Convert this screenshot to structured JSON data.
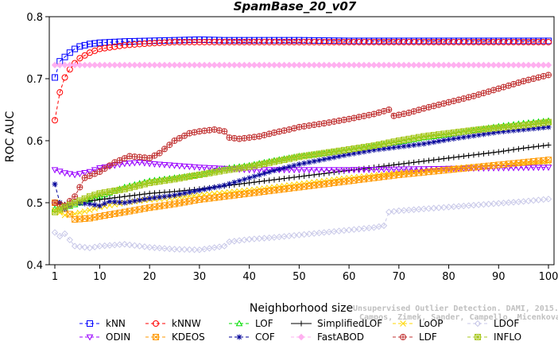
{
  "chart_data": {
    "type": "line",
    "title": "SpamBase_20_v07",
    "xlabel": "Neighborhood size",
    "ylabel": "ROC AUC",
    "xlim": [
      1,
      100
    ],
    "ylim": [
      0.4,
      0.8
    ],
    "xticks": [
      1,
      10,
      20,
      30,
      40,
      50,
      60,
      70,
      80,
      90,
      100
    ],
    "yticks": [
      0.4,
      0.5,
      0.6,
      0.7,
      0.8
    ],
    "grid": false,
    "legend_position": "bottom",
    "credit_lines": [
      "Unsupervised Outlier Detection. DAMI, 2015.",
      "Campos, Zimek, Sander, Campello, Micenkova, Schubert, Assent, Houle"
    ],
    "series": [
      {
        "name": "kNN",
        "color": "#0000ff",
        "marker": "square",
        "dash": "4,3",
        "points": [
          [
            1,
            0.702
          ],
          [
            2,
            0.728
          ],
          [
            3,
            0.735
          ],
          [
            4,
            0.742
          ],
          [
            5,
            0.748
          ],
          [
            6,
            0.752
          ],
          [
            8,
            0.756
          ],
          [
            10,
            0.758
          ],
          [
            15,
            0.76
          ],
          [
            20,
            0.761
          ],
          [
            25,
            0.762
          ],
          [
            30,
            0.763
          ],
          [
            35,
            0.762
          ],
          [
            40,
            0.762
          ],
          [
            50,
            0.762
          ],
          [
            60,
            0.761
          ],
          [
            70,
            0.761
          ],
          [
            80,
            0.761
          ],
          [
            90,
            0.761
          ],
          [
            100,
            0.761
          ]
        ]
      },
      {
        "name": "kNNW",
        "color": "#ff0000",
        "marker": "circle",
        "dash": "4,3",
        "points": [
          [
            1,
            0.633
          ],
          [
            2,
            0.678
          ],
          [
            3,
            0.702
          ],
          [
            4,
            0.715
          ],
          [
            5,
            0.725
          ],
          [
            6,
            0.733
          ],
          [
            8,
            0.742
          ],
          [
            10,
            0.748
          ],
          [
            15,
            0.754
          ],
          [
            20,
            0.757
          ],
          [
            25,
            0.759
          ],
          [
            30,
            0.759
          ],
          [
            35,
            0.759
          ],
          [
            40,
            0.759
          ],
          [
            50,
            0.759
          ],
          [
            60,
            0.759
          ],
          [
            70,
            0.759
          ],
          [
            80,
            0.759
          ],
          [
            90,
            0.759
          ],
          [
            100,
            0.759
          ]
        ]
      },
      {
        "name": "LOF",
        "color": "#00dd00",
        "marker": "triangle-up",
        "dash": "4,3",
        "points": [
          [
            1,
            0.49
          ],
          [
            3,
            0.492
          ],
          [
            5,
            0.497
          ],
          [
            8,
            0.505
          ],
          [
            10,
            0.51
          ],
          [
            15,
            0.525
          ],
          [
            20,
            0.535
          ],
          [
            25,
            0.54
          ],
          [
            30,
            0.545
          ],
          [
            35,
            0.555
          ],
          [
            40,
            0.56
          ],
          [
            45,
            0.568
          ],
          [
            50,
            0.575
          ],
          [
            55,
            0.58
          ],
          [
            60,
            0.585
          ],
          [
            65,
            0.592
          ],
          [
            70,
            0.598
          ],
          [
            75,
            0.605
          ],
          [
            80,
            0.61
          ],
          [
            85,
            0.617
          ],
          [
            90,
            0.623
          ],
          [
            95,
            0.628
          ],
          [
            100,
            0.632
          ]
        ]
      },
      {
        "name": "SimplifiedLOF",
        "color": "#000000",
        "marker": "plus",
        "dash": "",
        "points": [
          [
            1,
            0.5
          ],
          [
            3,
            0.497
          ],
          [
            5,
            0.5
          ],
          [
            8,
            0.503
          ],
          [
            10,
            0.505
          ],
          [
            15,
            0.51
          ],
          [
            20,
            0.515
          ],
          [
            25,
            0.518
          ],
          [
            30,
            0.522
          ],
          [
            35,
            0.527
          ],
          [
            40,
            0.532
          ],
          [
            45,
            0.537
          ],
          [
            50,
            0.542
          ],
          [
            55,
            0.547
          ],
          [
            60,
            0.552
          ],
          [
            65,
            0.557
          ],
          [
            70,
            0.562
          ],
          [
            75,
            0.567
          ],
          [
            80,
            0.572
          ],
          [
            85,
            0.577
          ],
          [
            90,
            0.582
          ],
          [
            95,
            0.588
          ],
          [
            100,
            0.593
          ]
        ]
      },
      {
        "name": "LoOP",
        "color": "#ffd700",
        "marker": "x",
        "dash": "4,3",
        "points": [
          [
            1,
            0.488
          ],
          [
            3,
            0.48
          ],
          [
            5,
            0.482
          ],
          [
            8,
            0.488
          ],
          [
            10,
            0.493
          ],
          [
            15,
            0.5
          ],
          [
            20,
            0.505
          ],
          [
            25,
            0.508
          ],
          [
            30,
            0.512
          ],
          [
            35,
            0.516
          ],
          [
            40,
            0.52
          ],
          [
            45,
            0.525
          ],
          [
            50,
            0.53
          ],
          [
            55,
            0.535
          ],
          [
            60,
            0.54
          ],
          [
            65,
            0.544
          ],
          [
            70,
            0.548
          ],
          [
            75,
            0.552
          ],
          [
            80,
            0.555
          ],
          [
            85,
            0.558
          ],
          [
            90,
            0.561
          ],
          [
            95,
            0.563
          ],
          [
            100,
            0.565
          ]
        ]
      },
      {
        "name": "LDOF",
        "color": "#c8c8e8",
        "marker": "diamond",
        "dash": "4,3",
        "points": [
          [
            1,
            0.452
          ],
          [
            2,
            0.446
          ],
          [
            3,
            0.45
          ],
          [
            5,
            0.43
          ],
          [
            8,
            0.427
          ],
          [
            10,
            0.43
          ],
          [
            15,
            0.433
          ],
          [
            20,
            0.428
          ],
          [
            25,
            0.425
          ],
          [
            30,
            0.424
          ],
          [
            35,
            0.43
          ],
          [
            36,
            0.437
          ],
          [
            40,
            0.441
          ],
          [
            45,
            0.444
          ],
          [
            50,
            0.448
          ],
          [
            55,
            0.452
          ],
          [
            60,
            0.456
          ],
          [
            65,
            0.46
          ],
          [
            67,
            0.463
          ],
          [
            68,
            0.485
          ],
          [
            70,
            0.487
          ],
          [
            75,
            0.49
          ],
          [
            80,
            0.493
          ],
          [
            85,
            0.496
          ],
          [
            90,
            0.499
          ],
          [
            95,
            0.502
          ],
          [
            100,
            0.506
          ]
        ]
      },
      {
        "name": "ODIN",
        "color": "#9900ff",
        "marker": "triangle-down",
        "dash": "4,3",
        "points": [
          [
            1,
            0.553
          ],
          [
            3,
            0.548
          ],
          [
            5,
            0.545
          ],
          [
            8,
            0.55
          ],
          [
            10,
            0.556
          ],
          [
            15,
            0.563
          ],
          [
            18,
            0.565
          ],
          [
            20,
            0.563
          ],
          [
            25,
            0.56
          ],
          [
            30,
            0.557
          ],
          [
            35,
            0.555
          ],
          [
            40,
            0.553
          ],
          [
            50,
            0.553
          ],
          [
            60,
            0.553
          ],
          [
            70,
            0.554
          ],
          [
            80,
            0.555
          ],
          [
            90,
            0.556
          ],
          [
            100,
            0.557
          ]
        ]
      },
      {
        "name": "KDEOS",
        "color": "#ff9900",
        "marker": "square-x",
        "dash": "4,3",
        "points": [
          [
            1,
            0.5
          ],
          [
            3,
            0.49
          ],
          [
            5,
            0.473
          ],
          [
            8,
            0.475
          ],
          [
            10,
            0.478
          ],
          [
            15,
            0.485
          ],
          [
            20,
            0.492
          ],
          [
            25,
            0.498
          ],
          [
            30,
            0.505
          ],
          [
            35,
            0.51
          ],
          [
            40,
            0.515
          ],
          [
            45,
            0.52
          ],
          [
            50,
            0.525
          ],
          [
            55,
            0.53
          ],
          [
            60,
            0.535
          ],
          [
            65,
            0.54
          ],
          [
            70,
            0.545
          ],
          [
            75,
            0.549
          ],
          [
            80,
            0.553
          ],
          [
            85,
            0.557
          ],
          [
            90,
            0.561
          ],
          [
            95,
            0.565
          ],
          [
            100,
            0.569
          ]
        ]
      },
      {
        "name": "COF",
        "color": "#000099",
        "marker": "asterisk",
        "dash": "4,3",
        "points": [
          [
            1,
            0.53
          ],
          [
            2,
            0.5
          ],
          [
            3,
            0.49
          ],
          [
            5,
            0.5
          ],
          [
            8,
            0.498
          ],
          [
            10,
            0.495
          ],
          [
            12,
            0.502
          ],
          [
            15,
            0.5
          ],
          [
            20,
            0.507
          ],
          [
            25,
            0.512
          ],
          [
            30,
            0.52
          ],
          [
            35,
            0.528
          ],
          [
            40,
            0.54
          ],
          [
            45,
            0.552
          ],
          [
            50,
            0.562
          ],
          [
            55,
            0.57
          ],
          [
            60,
            0.578
          ],
          [
            65,
            0.585
          ],
          [
            70,
            0.59
          ],
          [
            75,
            0.595
          ],
          [
            80,
            0.602
          ],
          [
            85,
            0.608
          ],
          [
            90,
            0.614
          ],
          [
            95,
            0.618
          ],
          [
            100,
            0.622
          ]
        ]
      },
      {
        "name": "FastABOD",
        "color": "#ffb0f0",
        "marker": "diamond-filled",
        "dash": "4,3",
        "points": [
          [
            1,
            0.722
          ],
          [
            5,
            0.722
          ],
          [
            10,
            0.722
          ],
          [
            20,
            0.722
          ],
          [
            30,
            0.722
          ],
          [
            40,
            0.722
          ],
          [
            50,
            0.722
          ],
          [
            60,
            0.722
          ],
          [
            70,
            0.722
          ],
          [
            80,
            0.722
          ],
          [
            90,
            0.722
          ],
          [
            100,
            0.722
          ]
        ]
      },
      {
        "name": "LDF",
        "color": "#c03030",
        "marker": "circle-plus",
        "dash": "4,3",
        "points": [
          [
            1,
            0.5
          ],
          [
            3,
            0.495
          ],
          [
            5,
            0.51
          ],
          [
            7,
            0.54
          ],
          [
            10,
            0.55
          ],
          [
            13,
            0.565
          ],
          [
            16,
            0.575
          ],
          [
            20,
            0.572
          ],
          [
            22,
            0.58
          ],
          [
            25,
            0.6
          ],
          [
            28,
            0.612
          ],
          [
            30,
            0.615
          ],
          [
            33,
            0.618
          ],
          [
            35,
            0.615
          ],
          [
            36,
            0.605
          ],
          [
            38,
            0.603
          ],
          [
            42,
            0.607
          ],
          [
            45,
            0.613
          ],
          [
            48,
            0.618
          ],
          [
            50,
            0.622
          ],
          [
            55,
            0.628
          ],
          [
            60,
            0.635
          ],
          [
            65,
            0.643
          ],
          [
            68,
            0.65
          ],
          [
            69,
            0.64
          ],
          [
            72,
            0.645
          ],
          [
            75,
            0.652
          ],
          [
            80,
            0.662
          ],
          [
            85,
            0.672
          ],
          [
            90,
            0.684
          ],
          [
            95,
            0.696
          ],
          [
            100,
            0.706
          ]
        ]
      },
      {
        "name": "INFLO",
        "color": "#a8c820",
        "marker": "square-asterisk",
        "dash": "4,3",
        "points": [
          [
            1,
            0.485
          ],
          [
            3,
            0.493
          ],
          [
            5,
            0.5
          ],
          [
            8,
            0.51
          ],
          [
            10,
            0.515
          ],
          [
            15,
            0.522
          ],
          [
            20,
            0.532
          ],
          [
            25,
            0.538
          ],
          [
            30,
            0.545
          ],
          [
            35,
            0.552
          ],
          [
            40,
            0.558
          ],
          [
            45,
            0.566
          ],
          [
            50,
            0.574
          ],
          [
            55,
            0.58
          ],
          [
            60,
            0.586
          ],
          [
            65,
            0.592
          ],
          [
            70,
            0.6
          ],
          [
            75,
            0.607
          ],
          [
            80,
            0.612
          ],
          [
            85,
            0.617
          ],
          [
            90,
            0.621
          ],
          [
            95,
            0.625
          ],
          [
            100,
            0.63
          ]
        ]
      }
    ]
  }
}
